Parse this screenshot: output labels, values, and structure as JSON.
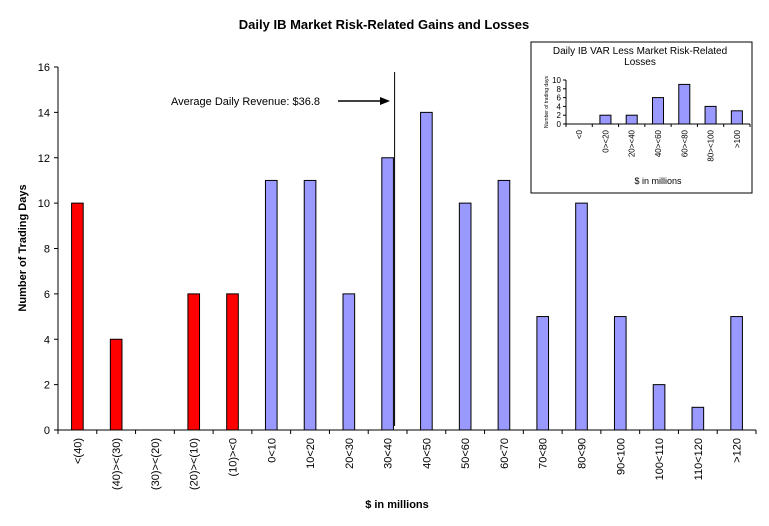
{
  "chart_data": [
    {
      "type": "bar",
      "title": "Daily IB Market Risk-Related Gains and Losses",
      "xlabel": "$ in millions",
      "ylabel": "Number of Trading Days",
      "ylim": [
        0,
        16
      ],
      "yticks": [
        0,
        2,
        4,
        6,
        8,
        10,
        12,
        14,
        16
      ],
      "grid": false,
      "categories": [
        "<(40)",
        "(40)><(30)",
        "(30)><(20)",
        "(20)><(10)",
        "(10)><0",
        "0<10",
        "10<20",
        "20<30",
        "30<40",
        "40<50",
        "50<60",
        "60<70",
        "70<80",
        "80<90",
        "90<100",
        "100<110",
        "110<120",
        ">120"
      ],
      "values": [
        10,
        4,
        0,
        6,
        6,
        11,
        11,
        6,
        12,
        14,
        10,
        11,
        5,
        10,
        5,
        2,
        1,
        5
      ],
      "colors": [
        "#ff0000",
        "#ff0000",
        "#ff0000",
        "#ff0000",
        "#ff0000",
        "#9999ff",
        "#9999ff",
        "#9999ff",
        "#9999ff",
        "#9999ff",
        "#9999ff",
        "#9999ff",
        "#9999ff",
        "#9999ff",
        "#9999ff",
        "#9999ff",
        "#9999ff",
        "#9999ff"
      ],
      "annotation": {
        "text": "Average Daily Revenue: $36.8",
        "value": 36.8
      }
    },
    {
      "type": "bar",
      "title": "Daily IB VAR Less Market Risk-Related Losses",
      "xlabel": "$ in millions",
      "ylabel": "Number of trading days",
      "ylim": [
        0,
        10
      ],
      "yticks": [
        0,
        2,
        4,
        6,
        8,
        10
      ],
      "categories": [
        "<0",
        "0><20",
        "20><40",
        "40><60",
        "60><80",
        "80><100",
        ">100"
      ],
      "values": [
        0,
        2,
        2,
        6,
        9,
        4,
        3
      ],
      "color": "#9999ff"
    }
  ]
}
